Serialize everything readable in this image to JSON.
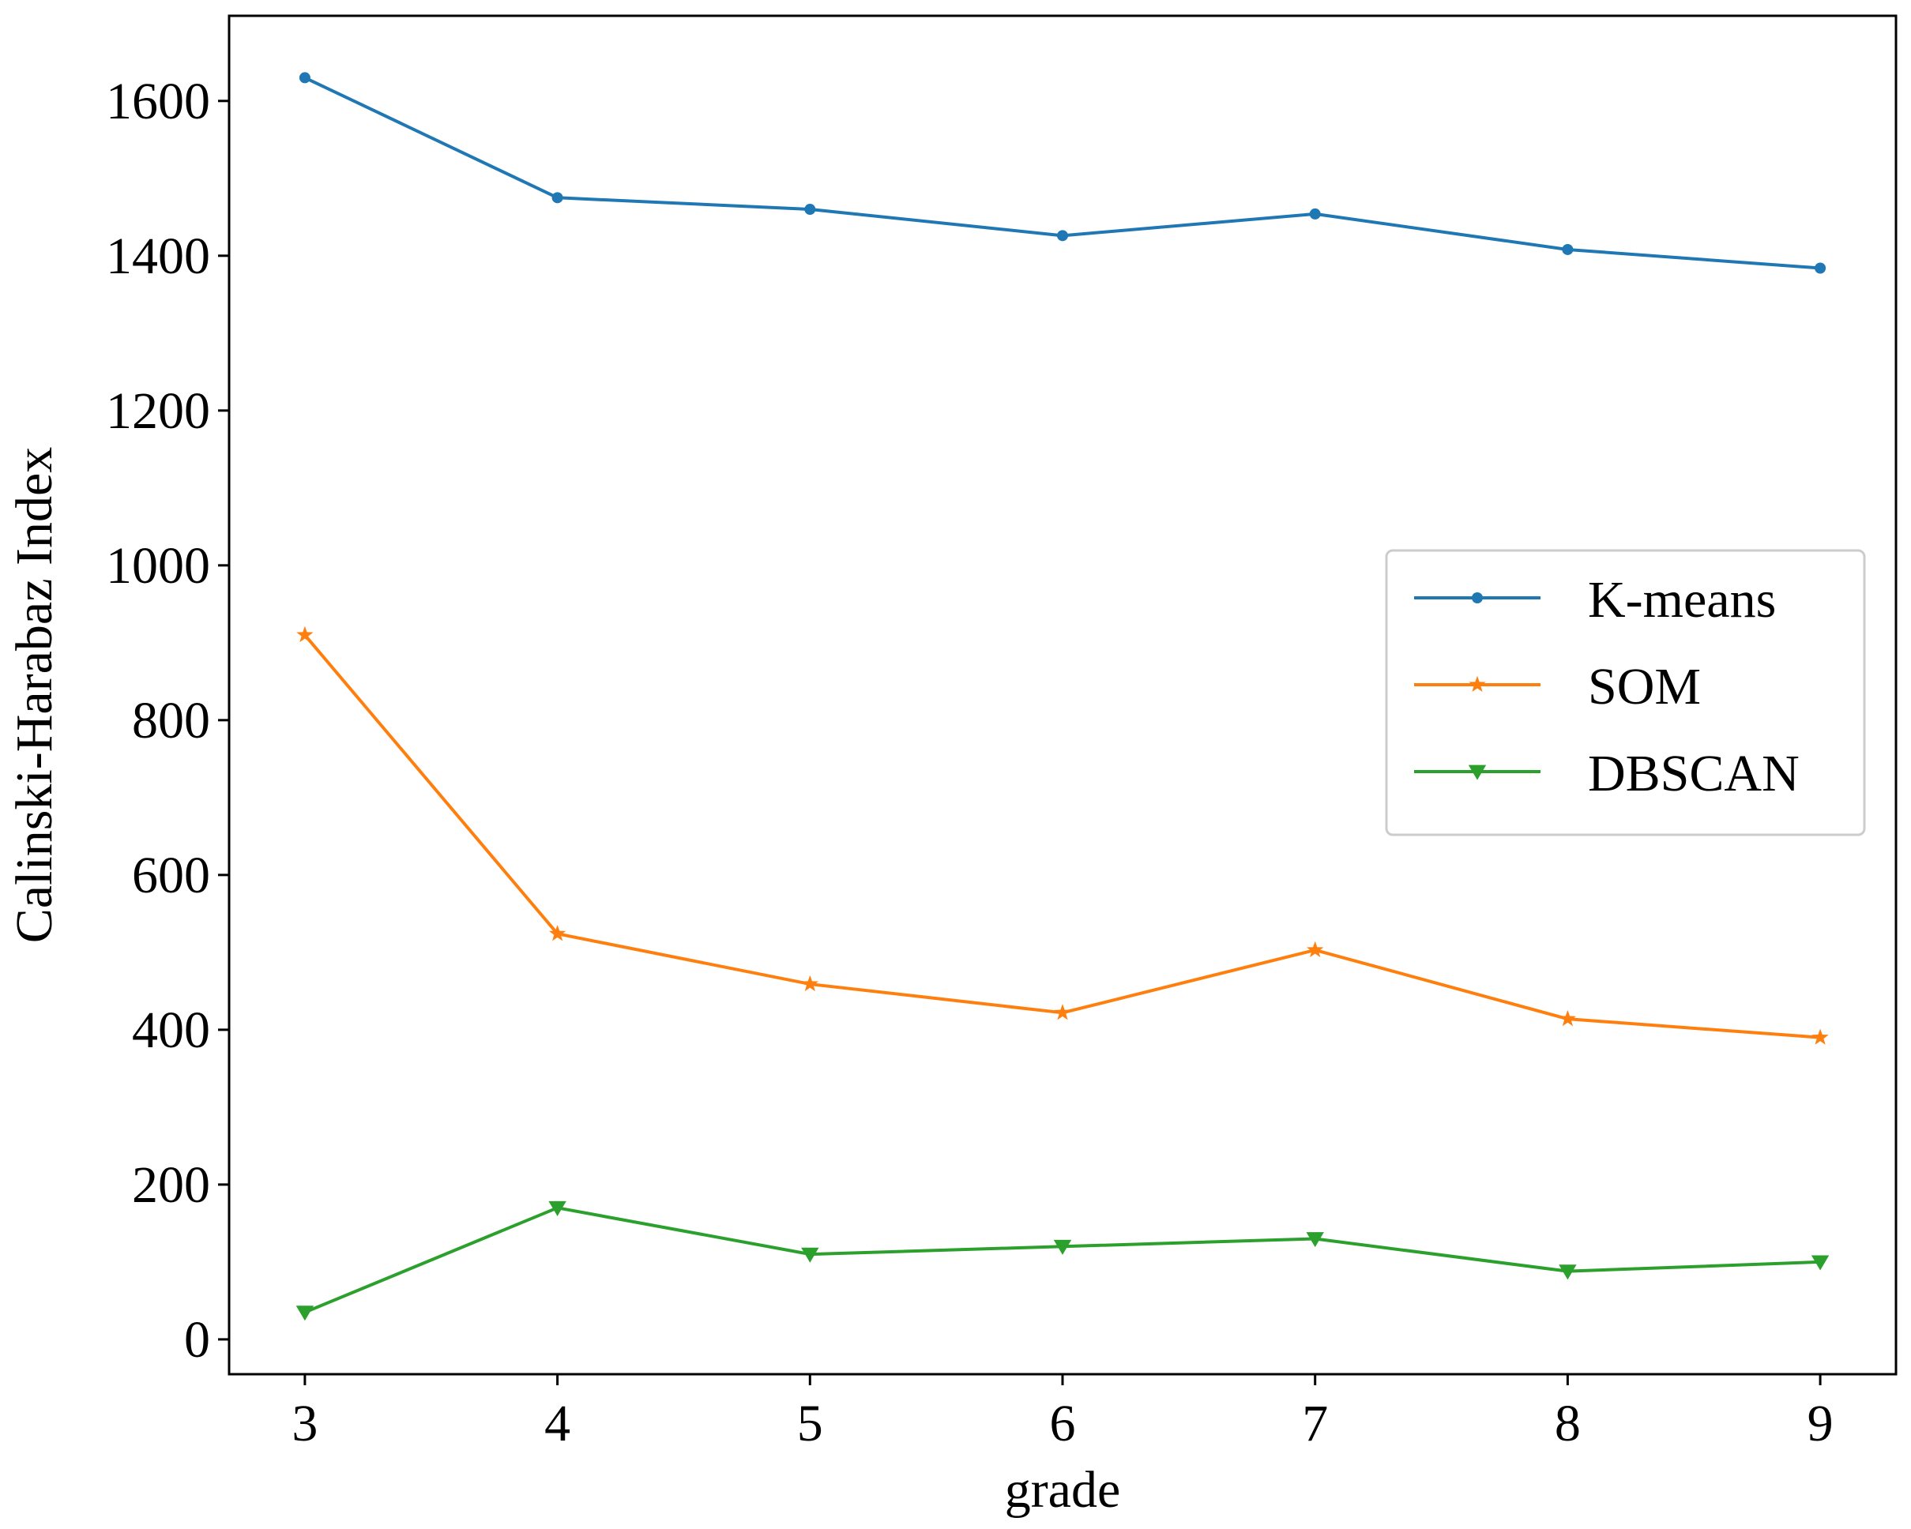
{
  "chart_data": {
    "type": "line",
    "title": "",
    "xlabel": "grade",
    "ylabel": "Calinski-Harabaz Index",
    "x": [
      3,
      4,
      5,
      6,
      7,
      8,
      9
    ],
    "xticks": [
      "3",
      "4",
      "5",
      "6",
      "7",
      "8",
      "9"
    ],
    "yticks": [
      "0",
      "200",
      "400",
      "600",
      "800",
      "1000",
      "1200",
      "1400",
      "1600"
    ],
    "xlim": [
      2.7,
      9.3
    ],
    "ylim": [
      -45,
      1710
    ],
    "grid": false,
    "legend_position": "center-right",
    "series": [
      {
        "name": "K-means",
        "color": "#1f77b4",
        "marker": "circle",
        "values": [
          1630,
          1475,
          1460,
          1426,
          1454,
          1408,
          1384
        ]
      },
      {
        "name": "SOM",
        "color": "#ff7f0e",
        "marker": "star",
        "values": [
          910,
          524,
          459,
          422,
          503,
          414,
          390
        ]
      },
      {
        "name": "DBSCAN",
        "color": "#2ca02c",
        "marker": "triangle-down",
        "values": [
          35,
          170,
          110,
          120,
          130,
          88,
          100
        ]
      }
    ]
  }
}
